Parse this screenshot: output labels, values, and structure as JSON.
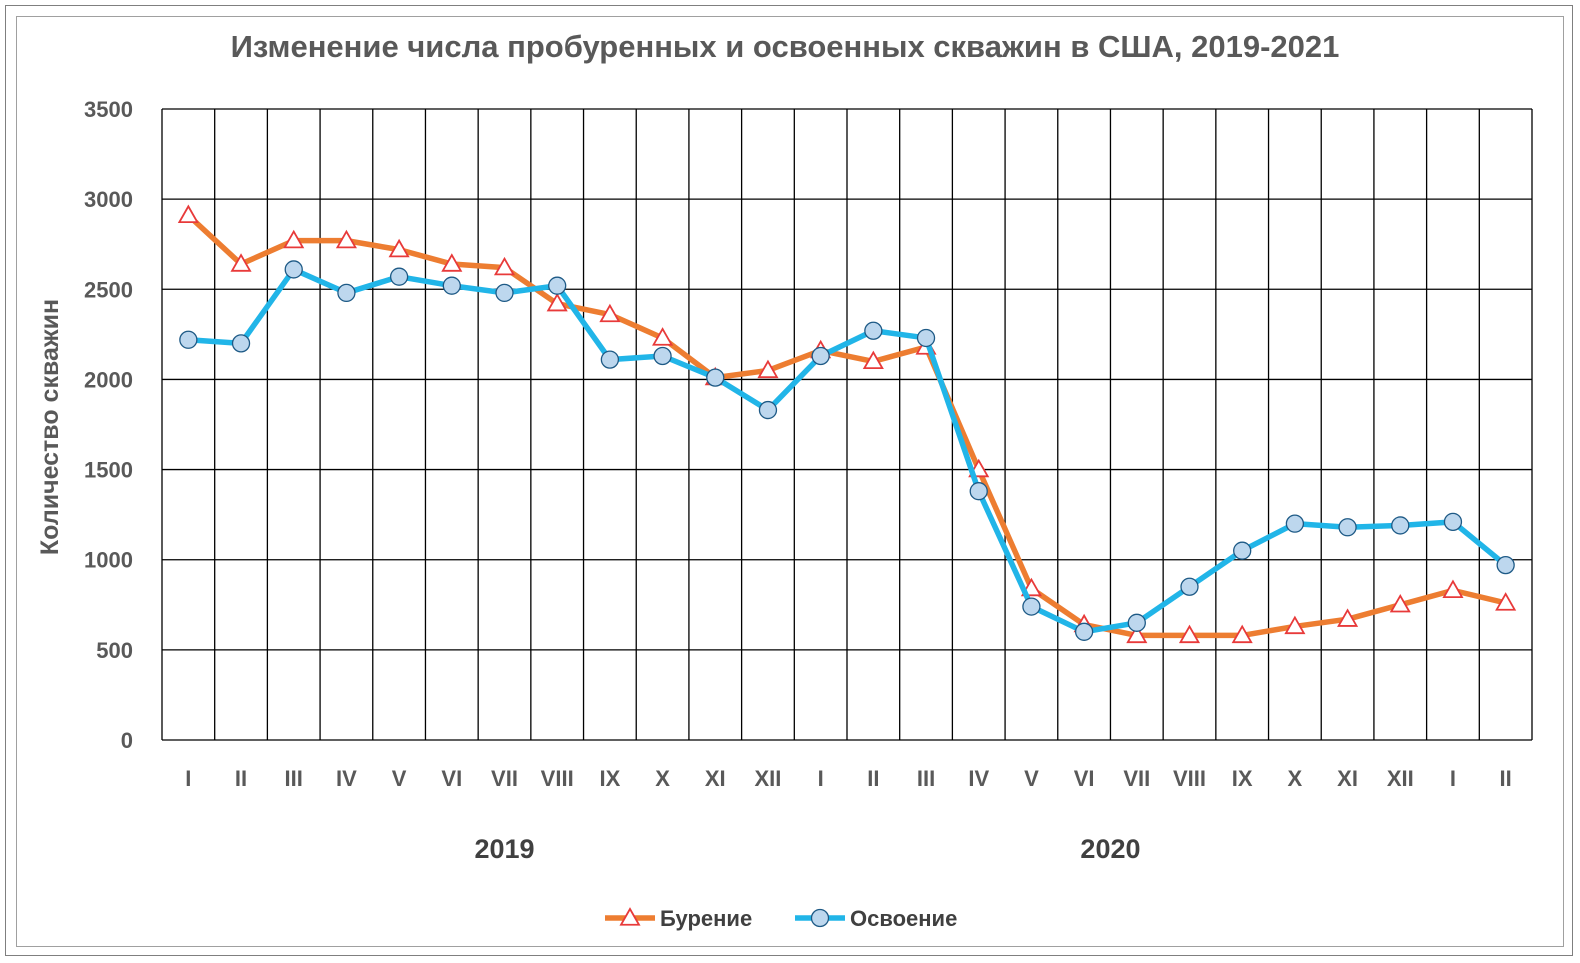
{
  "chart_data": {
    "type": "line",
    "title": "Изменение числа пробуренных  и освоенных скважин в США, 2019-2021",
    "ylabel": "Количество скважин",
    "xlabel": "",
    "ylim": [
      0,
      3500
    ],
    "yticks": [
      0,
      500,
      1000,
      1500,
      2000,
      2500,
      3000,
      3500
    ],
    "grid": true,
    "legend_position": "bottom",
    "categories": [
      "I",
      "II",
      "III",
      "IV",
      "V",
      "VI",
      "VII",
      "VIII",
      "IX",
      "X",
      "XI",
      "XII",
      "I",
      "II",
      "III",
      "IV",
      "V",
      "VI",
      "VII",
      "VIII",
      "IX",
      "X",
      "XI",
      "XII",
      "I",
      "II"
    ],
    "year_labels": [
      {
        "label": "2019",
        "category_index": 6
      },
      {
        "label": "2020",
        "category_index": 17.5
      }
    ],
    "series": [
      {
        "name": "Бурение",
        "color": "#ed7d31",
        "marker": "triangle",
        "marker_color": "#e83a3a",
        "values": [
          2910,
          2640,
          2770,
          2770,
          2720,
          2640,
          2620,
          2420,
          2360,
          2230,
          2010,
          2050,
          2160,
          2100,
          2180,
          1500,
          840,
          640,
          580,
          580,
          580,
          630,
          670,
          750,
          830,
          760
        ]
      },
      {
        "name": "Освоение",
        "color": "#21b5e8",
        "marker": "circle",
        "marker_color": "#bdd7ee",
        "values": [
          2220,
          2200,
          2610,
          2480,
          2570,
          2520,
          2480,
          2520,
          2110,
          2130,
          2010,
          1830,
          2130,
          2270,
          2230,
          1380,
          740,
          600,
          650,
          850,
          1050,
          1200,
          1180,
          1190,
          1210,
          970
        ]
      }
    ]
  }
}
